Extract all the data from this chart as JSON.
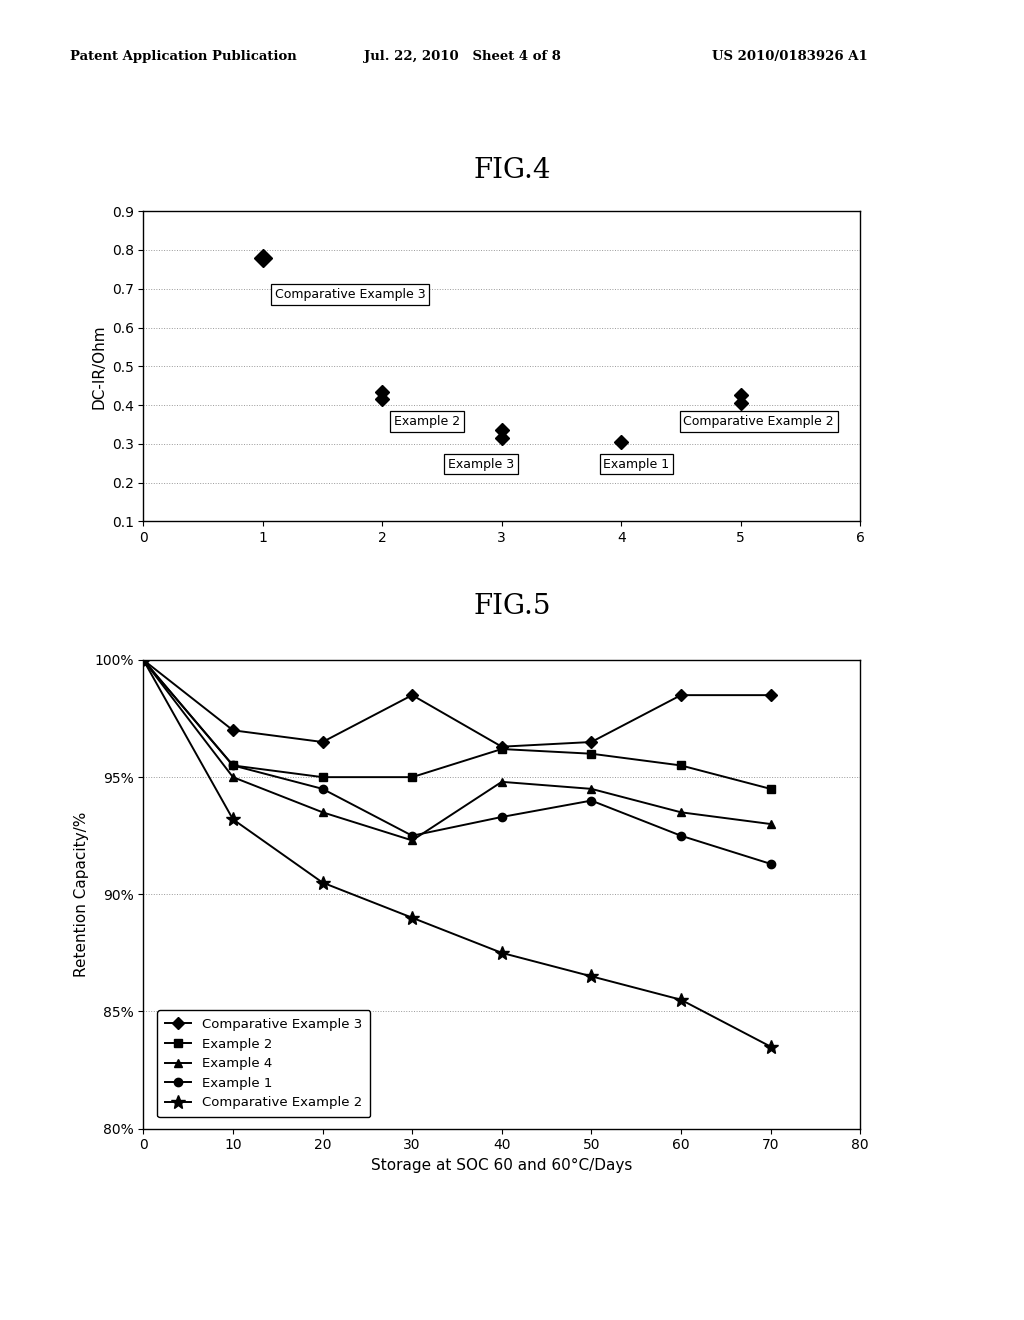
{
  "header_left": "Patent Application Publication",
  "header_mid": "Jul. 22, 2010   Sheet 4 of 8",
  "header_right": "US 2010/0183926 A1",
  "fig4_title": "FIG.4",
  "fig4_ylabel": "DC-IR/Ohm",
  "fig4_xlim": [
    0,
    6
  ],
  "fig4_ylim": [
    0.1,
    0.9
  ],
  "fig4_yticks": [
    0.1,
    0.2,
    0.3,
    0.4,
    0.5,
    0.6,
    0.7,
    0.8,
    0.9
  ],
  "fig4_xticks": [
    0,
    1,
    2,
    3,
    4,
    5,
    6
  ],
  "fig5_title": "FIG.5",
  "fig5_ylabel": "Retention Capacity/%",
  "fig5_xlabel": "Storage at SOC 60 and 60°C/Days",
  "fig5_xlim": [
    0,
    80
  ],
  "fig5_ylim": [
    80,
    100
  ],
  "fig5_ytick_labels": [
    "80%",
    "85%",
    "90%",
    "95%",
    "100%"
  ],
  "fig5_yticks": [
    80,
    85,
    90,
    95,
    100
  ],
  "fig5_xticks": [
    0,
    10,
    20,
    30,
    40,
    50,
    60,
    70,
    80
  ],
  "fig5_comp_ex3": {
    "x": [
      0,
      10,
      20,
      30,
      40,
      50,
      60,
      70
    ],
    "y": [
      100,
      97.0,
      96.5,
      98.5,
      96.3,
      96.5,
      98.5,
      98.5
    ]
  },
  "fig5_ex2": {
    "x": [
      0,
      10,
      20,
      30,
      40,
      50,
      60,
      70
    ],
    "y": [
      100,
      95.5,
      95.0,
      95.0,
      96.2,
      96.0,
      95.5,
      94.5
    ]
  },
  "fig5_ex4": {
    "x": [
      0,
      10,
      20,
      30,
      40,
      50,
      60,
      70
    ],
    "y": [
      100,
      95.0,
      93.5,
      92.3,
      94.8,
      94.5,
      93.5,
      93.0
    ]
  },
  "fig5_ex1": {
    "x": [
      0,
      10,
      20,
      30,
      40,
      50,
      60,
      70
    ],
    "y": [
      100,
      95.5,
      94.5,
      92.5,
      93.3,
      94.0,
      92.5,
      91.3
    ]
  },
  "fig5_comp_ex2": {
    "x": [
      0,
      10,
      20,
      30,
      40,
      50,
      60,
      70
    ],
    "y": [
      100,
      93.2,
      90.5,
      89.0,
      87.5,
      86.5,
      85.5,
      83.5
    ]
  },
  "background_color": "#ffffff",
  "grid_color": "#999999"
}
